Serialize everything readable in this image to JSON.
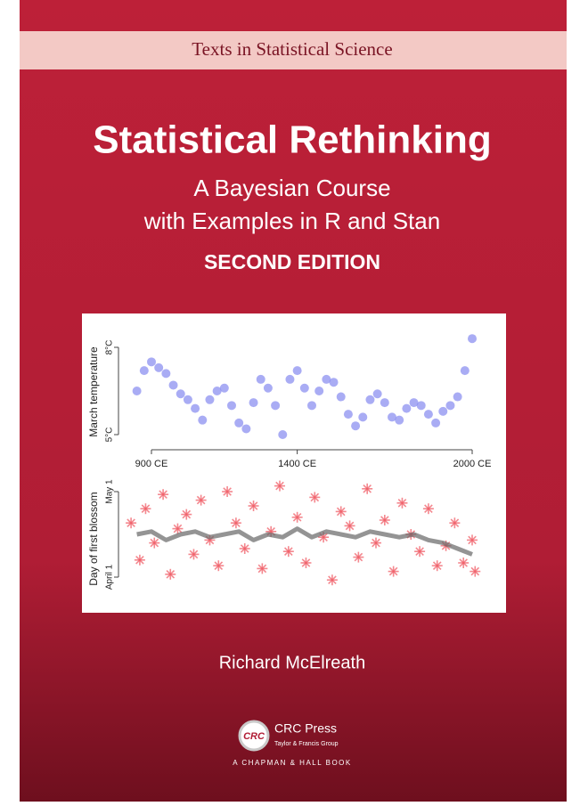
{
  "series_banner": "Texts in Statistical Science",
  "title": "Statistical Rethinking",
  "subtitle": [
    "A Bayesian Course",
    "with Examples in R and Stan"
  ],
  "edition": "SECOND EDITION",
  "temperature_plot": {
    "y_label": "March temperature",
    "yticks": [
      {
        "value": 8,
        "label": "8°C"
      },
      {
        "value": 5,
        "label": "5°C"
      }
    ],
    "xticks": [
      {
        "value": 900,
        "label": "900 CE"
      },
      {
        "value": 1400,
        "label": "1400 CE"
      },
      {
        "value": 2000,
        "label": "2000 CE"
      }
    ],
    "x": [
      850,
      875,
      900,
      925,
      950,
      975,
      1000,
      1025,
      1050,
      1075,
      1100,
      1125,
      1150,
      1175,
      1200,
      1225,
      1250,
      1275,
      1300,
      1325,
      1350,
      1375,
      1400,
      1425,
      1450,
      1475,
      1500,
      1525,
      1550,
      1575,
      1600,
      1625,
      1650,
      1675,
      1700,
      1725,
      1750,
      1775,
      1800,
      1825,
      1850,
      1875,
      1900,
      1925,
      1950,
      1975,
      2000
    ],
    "values": [
      6.5,
      7.2,
      7.5,
      7.3,
      7.1,
      6.7,
      6.4,
      6.2,
      5.9,
      5.5,
      6.2,
      6.5,
      6.6,
      6.0,
      5.4,
      5.2,
      6.1,
      6.9,
      6.6,
      6.0,
      5.0,
      6.9,
      7.2,
      6.6,
      6.0,
      6.5,
      6.9,
      6.8,
      6.3,
      5.7,
      5.3,
      5.6,
      6.2,
      6.4,
      6.1,
      5.6,
      5.5,
      5.9,
      6.1,
      6.0,
      5.7,
      5.4,
      5.8,
      6.0,
      6.3,
      7.2,
      8.3
    ],
    "color": "#8c90f0"
  },
  "blossom_plot": {
    "y_label": "Day of first blossom",
    "yticks": [
      {
        "value": 121,
        "label": "May 1"
      },
      {
        "value": 91,
        "label": "April 1"
      }
    ],
    "points": {
      "x": [
        830,
        860,
        880,
        910,
        940,
        965,
        990,
        1020,
        1045,
        1070,
        1100,
        1130,
        1160,
        1190,
        1220,
        1250,
        1280,
        1310,
        1340,
        1370,
        1400,
        1430,
        1460,
        1490,
        1520,
        1550,
        1580,
        1610,
        1640,
        1670,
        1700,
        1730,
        1760,
        1790,
        1820,
        1850,
        1880,
        1910,
        1940,
        1970,
        2000,
        2010
      ],
      "values": [
        110,
        97,
        115,
        103,
        120,
        92,
        108,
        113,
        99,
        118,
        104,
        95,
        121,
        110,
        101,
        116,
        94,
        107,
        123,
        100,
        112,
        96,
        119,
        105,
        90,
        114,
        109,
        98,
        122,
        103,
        111,
        93,
        117,
        106,
        100,
        115,
        95,
        102,
        110,
        96,
        104,
        93
      ]
    },
    "trend": {
      "x": [
        850,
        900,
        950,
        1000,
        1050,
        1100,
        1150,
        1200,
        1250,
        1300,
        1350,
        1400,
        1450,
        1500,
        1550,
        1600,
        1650,
        1700,
        1750,
        1800,
        1850,
        1900,
        1950,
        2000
      ],
      "values": [
        106,
        107,
        104,
        106,
        107,
        105,
        106,
        107,
        104,
        106,
        105,
        108,
        105,
        107,
        106,
        105,
        107,
        106,
        105,
        106,
        104,
        103,
        101,
        99
      ]
    },
    "color": "#f0606a",
    "trend_color": "#666666"
  },
  "author": "Richard McElreath",
  "publisher": {
    "logo": "CRC",
    "name": "CRC Press",
    "group": "Taylor & Francis Group",
    "imprint": "A CHAPMAN & HALL BOOK"
  }
}
